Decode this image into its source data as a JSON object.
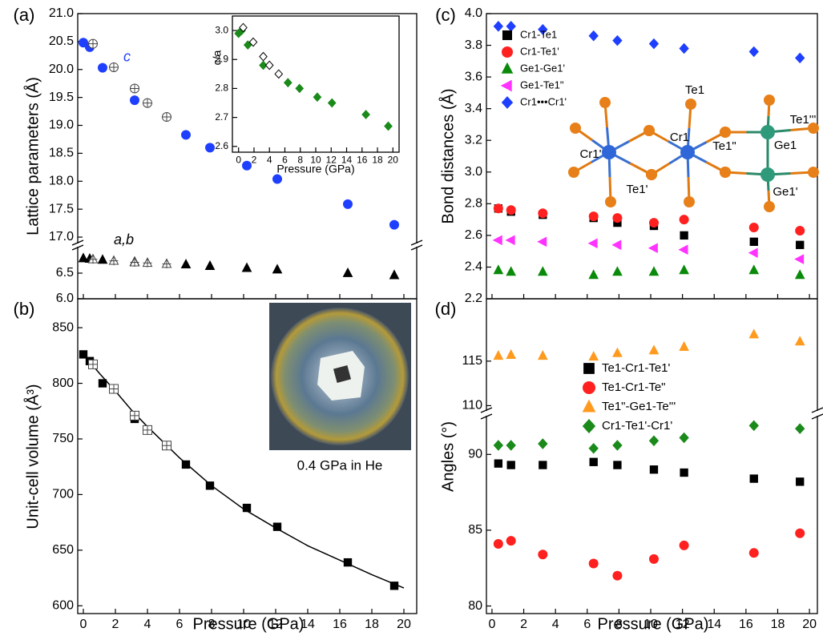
{
  "chart_data": [
    {
      "type": "scatter",
      "label": "(a)",
      "ylabel": "Lattice parameters (Å)",
      "xlim": [
        -0.35,
        20.8
      ],
      "xticks": [
        0,
        2,
        4,
        6,
        8,
        10,
        12,
        14,
        16,
        18,
        20
      ],
      "xtick_labels": false,
      "ylim": [
        16.9,
        21.0
      ],
      "yticks": [
        {
          "value": 17,
          "label": "17.0"
        },
        17.5,
        {
          "value": 18,
          "label": "18.0"
        },
        18.5,
        {
          "value": 19,
          "label": "19.0"
        },
        19.5,
        {
          "value": 20,
          "label": "20.0"
        },
        20.5,
        {
          "value": 21,
          "label": "21.0"
        }
      ],
      "y2lim": [
        6.0,
        7.0
      ],
      "y2ticks": [
        {
          "value": 6,
          "label": "6.0"
        },
        6.5
      ],
      "broken_axis": true,
      "legend": "none",
      "series": [
        {
          "name": "c",
          "color": "#1f3fff",
          "marker": "circle",
          "x": [
            0,
            0.4,
            1.2,
            3.2,
            6.4,
            7.9,
            10.2,
            12.1,
            16.5,
            19.4
          ],
          "values": [
            20.48,
            20.4,
            20.03,
            19.45,
            18.83,
            18.6,
            18.28,
            18.04,
            17.59,
            17.22
          ]
        },
        {
          "color": "#444444",
          "marker": "circle-cross",
          "x": [
            0.6,
            1.9,
            3.2,
            4.0,
            5.2
          ],
          "values": [
            20.46,
            20.04,
            19.66,
            19.4,
            19.15
          ]
        },
        {
          "name": "a,b",
          "color": "#000000",
          "marker": "triangle",
          "axis": "y2",
          "x": [
            0,
            0.4,
            1.2,
            3.2,
            6.4,
            7.9,
            10.2,
            12.1,
            16.5,
            19.4
          ],
          "values": [
            6.79,
            6.78,
            6.76,
            6.72,
            6.67,
            6.64,
            6.6,
            6.57,
            6.5,
            6.46
          ]
        },
        {
          "color": "#444444",
          "marker": "triangle-cross",
          "axis": "y2",
          "x": [
            0.6,
            1.9,
            3.2,
            4.0,
            5.2
          ],
          "values": [
            6.77,
            6.74,
            6.71,
            6.7,
            6.68
          ]
        }
      ]
    },
    {
      "type": "scatter",
      "xlabel": "Pressure (GPa)",
      "ylabel": "c/a",
      "xlim": [
        -0.8,
        20.8
      ],
      "xticks": [
        0,
        2,
        4,
        6,
        8,
        10,
        12,
        14,
        16,
        18,
        20
      ],
      "ylim": [
        2.58,
        3.05
      ],
      "yticks": [
        2.6,
        2.7,
        2.8,
        2.9,
        {
          "value": 3,
          "label": "3.0"
        }
      ],
      "legend": "none",
      "series": [
        {
          "color": "#1a8a1a",
          "marker": "diamond",
          "x": [
            0,
            0.4,
            1.2,
            3.2,
            6.4,
            7.9,
            10.2,
            12.1,
            16.5,
            19.4
          ],
          "values": [
            2.99,
            3.0,
            2.95,
            2.88,
            2.82,
            2.8,
            2.77,
            2.75,
            2.71,
            2.67
          ]
        },
        {
          "color": "#000000",
          "marker": "diamond-open",
          "x": [
            0.6,
            1.9,
            3.2,
            4.0,
            5.2
          ],
          "values": [
            3.01,
            2.96,
            2.91,
            2.88,
            2.85
          ]
        }
      ]
    },
    {
      "type": "scatter",
      "label": "(b)",
      "xlabel": "Pressure (GPa)",
      "ylabel": "Unit-cell volume (Å³)",
      "xlim": [
        -0.35,
        20.8
      ],
      "xticks": [
        0,
        2,
        4,
        6,
        8,
        10,
        12,
        14,
        16,
        18,
        20
      ],
      "ylim": [
        593,
        876
      ],
      "yticks": [
        600,
        650,
        700,
        750,
        800,
        850
      ],
      "legend": "none",
      "annotation": "0.4 GPa in He",
      "series": [
        {
          "color": "#000000",
          "marker": "line",
          "x": [
            0,
            1,
            2,
            3,
            4,
            6,
            8,
            10,
            12,
            14,
            16,
            18,
            20
          ],
          "values": [
            826,
            809,
            793,
            776,
            761,
            733,
            708,
            687,
            670,
            654,
            641,
            628,
            616
          ]
        },
        {
          "color": "#000000",
          "marker": "square",
          "x": [
            0,
            0.4,
            1.2,
            3.2,
            6.4,
            7.9,
            10.2,
            12.1,
            16.5,
            19.4
          ],
          "values": [
            826,
            820,
            800,
            768,
            727,
            708,
            688,
            671,
            639,
            618
          ]
        },
        {
          "color": "#444444",
          "marker": "square-cross",
          "x": [
            0.6,
            1.9,
            3.2,
            4.0,
            5.2
          ],
          "values": [
            817,
            795,
            771,
            758,
            744
          ]
        }
      ]
    },
    {
      "type": "scatter",
      "label": "(c)",
      "ylabel": "Bond distances (Å)",
      "xlim": [
        -0.35,
        20.5
      ],
      "xticks": [
        0,
        2,
        4,
        6,
        8,
        10,
        12,
        14,
        16,
        18,
        20
      ],
      "xtick_labels": false,
      "ylim": [
        2.2,
        4.0
      ],
      "yticks": [
        2.2,
        2.4,
        2.6,
        2.8,
        {
          "value": 3,
          "label": "3.0"
        },
        3.2,
        3.4,
        3.6,
        3.8,
        {
          "value": 4,
          "label": "4.0"
        }
      ],
      "legend": "upper left",
      "structure_labels": [
        "Cr1'",
        "Cr1",
        "Te1",
        "Te1'",
        "Te1\"",
        "Ge1",
        "Ge1'",
        "Te1'''"
      ],
      "series": [
        {
          "name": "Cr1-Te1",
          "color": "#000000",
          "marker": "square",
          "x": [
            0.4,
            1.2,
            3.2,
            6.4,
            7.9,
            10.2,
            12.1,
            16.5,
            19.4
          ],
          "values": [
            2.77,
            2.75,
            2.73,
            2.71,
            2.68,
            2.66,
            2.6,
            2.56,
            2.54
          ]
        },
        {
          "name": "Cr1-Te1'",
          "color": "#ff2020",
          "marker": "circle",
          "x": [
            0.4,
            1.2,
            3.2,
            6.4,
            7.9,
            10.2,
            12.1,
            16.5,
            19.4
          ],
          "values": [
            2.77,
            2.76,
            2.74,
            2.72,
            2.71,
            2.68,
            2.7,
            2.65,
            2.63
          ]
        },
        {
          "name": "Ge1-Ge1'",
          "color": "#0a8a0a",
          "marker": "triangle",
          "x": [
            0.4,
            1.2,
            3.2,
            6.4,
            7.9,
            10.2,
            12.1,
            16.5,
            19.4
          ],
          "values": [
            2.38,
            2.37,
            2.37,
            2.35,
            2.37,
            2.37,
            2.38,
            2.38,
            2.35
          ]
        },
        {
          "name": "Ge1-Te1\"",
          "color": "#ff33ff",
          "marker": "triangle-left",
          "x": [
            0.4,
            1.2,
            3.2,
            6.4,
            7.9,
            10.2,
            12.1,
            16.5,
            19.4
          ],
          "values": [
            2.57,
            2.57,
            2.56,
            2.55,
            2.54,
            2.52,
            2.51,
            2.49,
            2.45
          ]
        },
        {
          "name": "Cr1•••Cr1'",
          "color": "#1f3fff",
          "marker": "diamond",
          "x": [
            0.4,
            1.2,
            3.2,
            6.4,
            7.9,
            10.2,
            12.1,
            16.5,
            19.4
          ],
          "values": [
            3.92,
            3.92,
            3.9,
            3.86,
            3.83,
            3.81,
            3.78,
            3.76,
            3.72
          ]
        }
      ]
    },
    {
      "type": "scatter",
      "label": "(d)",
      "xlabel": "Pressure (GPa)",
      "ylabel": "Angles (°)",
      "xlim": [
        -0.35,
        20.5
      ],
      "xticks": [
        0,
        2,
        4,
        6,
        8,
        10,
        12,
        14,
        16,
        18,
        20
      ],
      "ylim": [
        79.5,
        92.5
      ],
      "yticks": [
        80,
        85,
        90
      ],
      "y2lim": [
        109.5,
        122
      ],
      "y2ticks": [
        110,
        115
      ],
      "broken_axis": true,
      "legend": "center",
      "series": [
        {
          "name": "Te1-Cr1-Te1'",
          "color": "#000000",
          "marker": "square",
          "x": [
            0.4,
            1.2,
            3.2,
            6.4,
            7.9,
            10.2,
            12.1,
            16.5,
            19.4
          ],
          "values": [
            89.4,
            89.3,
            89.3,
            89.5,
            89.3,
            89.0,
            88.8,
            88.4,
            88.2
          ]
        },
        {
          "name": "Te1-Cr1-Te\"",
          "color": "#ff2020",
          "marker": "circle",
          "x": [
            0.4,
            1.2,
            3.2,
            6.4,
            7.9,
            10.2,
            12.1,
            16.5,
            19.4
          ],
          "values": [
            84.1,
            84.3,
            83.4,
            82.8,
            82.0,
            83.1,
            84.0,
            83.5,
            84.8
          ]
        },
        {
          "name": "Te1\"-Ge1-Te'''",
          "color": "#ff9a1f",
          "marker": "triangle",
          "axis": "y2",
          "x": [
            0.4,
            1.2,
            3.2,
            6.4,
            7.9,
            10.2,
            12.1,
            16.5,
            19.4
          ],
          "values": [
            115.6,
            115.7,
            115.6,
            115.5,
            115.9,
            116.2,
            116.6,
            118.0,
            117.2
          ]
        },
        {
          "name": "Cr1-Te1'-Cr1'",
          "color": "#1a8a1a",
          "marker": "diamond",
          "x": [
            0.4,
            1.2,
            3.2,
            6.4,
            7.9,
            10.2,
            12.1,
            16.5,
            19.4
          ],
          "values": [
            90.6,
            90.6,
            90.7,
            90.4,
            90.6,
            90.9,
            91.1,
            91.9,
            91.7
          ]
        }
      ]
    }
  ]
}
